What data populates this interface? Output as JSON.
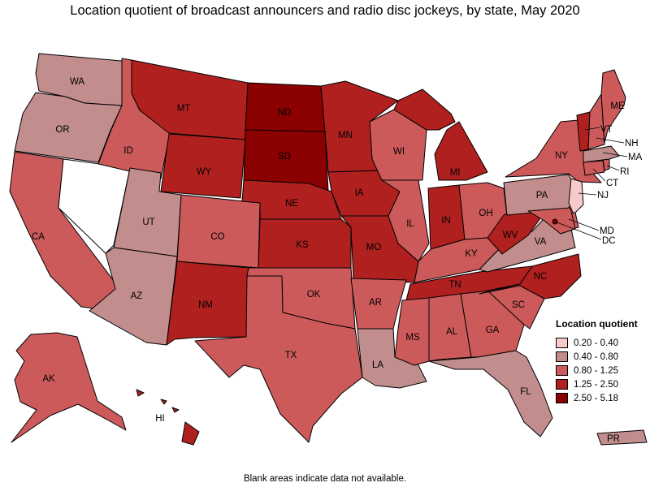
{
  "title": "Location quotient of broadcast announcers and radio disc jockeys, by state, May 2020",
  "footnote": "Blank areas indicate data not available.",
  "legend": {
    "title": "Location quotient",
    "bins": [
      {
        "label": "0.20 - 0.40",
        "color": "#f8c9c9"
      },
      {
        "label": "0.40 - 0.80",
        "color": "#c18d8d"
      },
      {
        "label": "0.80 - 1.25",
        "color": "#cd5a5a"
      },
      {
        "label": "1.25 - 2.50",
        "color": "#b0201f"
      },
      {
        "label": "2.50 - 5.18",
        "color": "#8b0000"
      }
    ]
  },
  "no_data_color": "#ffffff",
  "states": [
    {
      "id": "WA",
      "bin": 1
    },
    {
      "id": "OR",
      "bin": 1
    },
    {
      "id": "CA",
      "bin": 2
    },
    {
      "id": "NV",
      "bin": null
    },
    {
      "id": "ID",
      "bin": 2
    },
    {
      "id": "MT",
      "bin": 3
    },
    {
      "id": "WY",
      "bin": 3
    },
    {
      "id": "UT",
      "bin": 1
    },
    {
      "id": "AZ",
      "bin": 1
    },
    {
      "id": "CO",
      "bin": 2
    },
    {
      "id": "NM",
      "bin": 3
    },
    {
      "id": "ND",
      "bin": 4
    },
    {
      "id": "SD",
      "bin": 4
    },
    {
      "id": "NE",
      "bin": 3
    },
    {
      "id": "KS",
      "bin": 3
    },
    {
      "id": "OK",
      "bin": 2
    },
    {
      "id": "TX",
      "bin": 2
    },
    {
      "id": "MN",
      "bin": 3
    },
    {
      "id": "IA",
      "bin": 3
    },
    {
      "id": "MO",
      "bin": 3
    },
    {
      "id": "AR",
      "bin": 2
    },
    {
      "id": "LA",
      "bin": 1
    },
    {
      "id": "WI",
      "bin": 2
    },
    {
      "id": "IL",
      "bin": 2
    },
    {
      "id": "MI",
      "bin": 3
    },
    {
      "id": "IN",
      "bin": 3
    },
    {
      "id": "OH",
      "bin": 2
    },
    {
      "id": "KY",
      "bin": 2
    },
    {
      "id": "TN",
      "bin": 3
    },
    {
      "id": "MS",
      "bin": 2
    },
    {
      "id": "AL",
      "bin": 2
    },
    {
      "id": "GA",
      "bin": 2
    },
    {
      "id": "FL",
      "bin": 1
    },
    {
      "id": "SC",
      "bin": 2
    },
    {
      "id": "NC",
      "bin": 3
    },
    {
      "id": "VA",
      "bin": 1
    },
    {
      "id": "WV",
      "bin": 3
    },
    {
      "id": "PA",
      "bin": 1
    },
    {
      "id": "NY",
      "bin": 2
    },
    {
      "id": "VT",
      "bin": 3
    },
    {
      "id": "NH",
      "bin": 2
    },
    {
      "id": "ME",
      "bin": 2
    },
    {
      "id": "MA",
      "bin": 1
    },
    {
      "id": "RI",
      "bin": 2
    },
    {
      "id": "CT",
      "bin": 2
    },
    {
      "id": "NJ",
      "bin": 0
    },
    {
      "id": "DE",
      "bin": 2
    },
    {
      "id": "MD",
      "bin": 2
    },
    {
      "id": "DC",
      "bin": 4
    },
    {
      "id": "AK",
      "bin": 2
    },
    {
      "id": "HI",
      "bin": 3
    },
    {
      "id": "PR",
      "bin": 1
    }
  ]
}
